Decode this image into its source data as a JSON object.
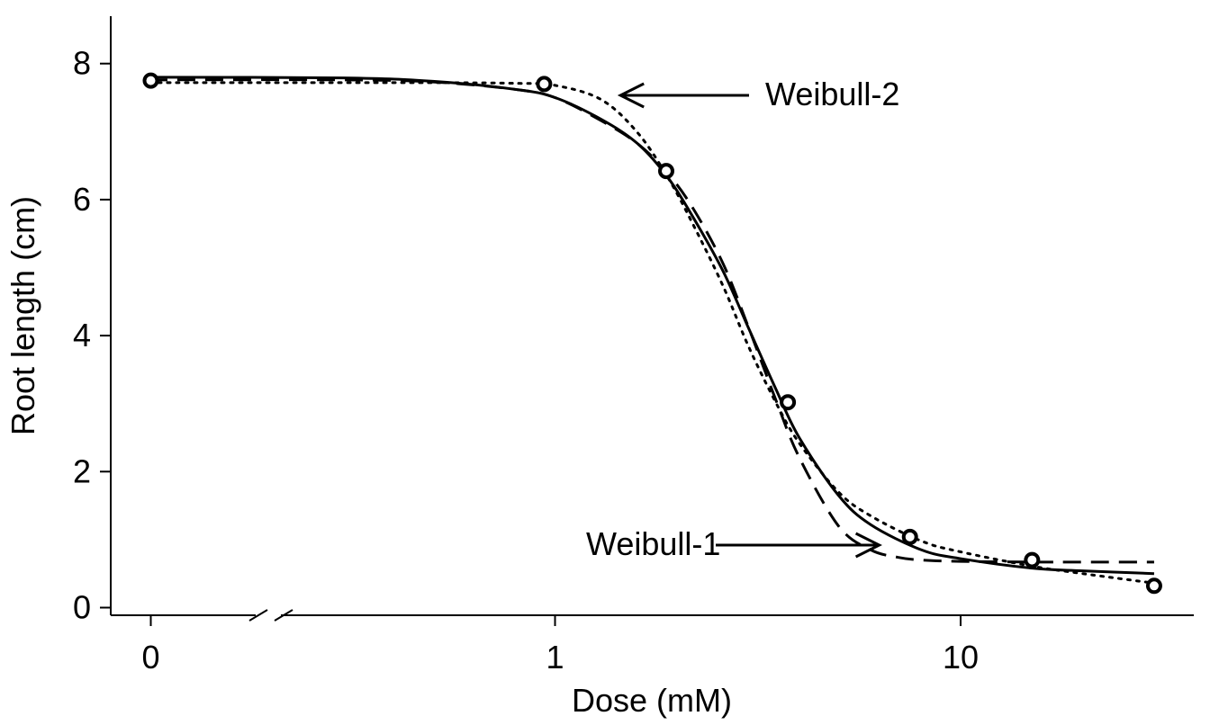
{
  "chart_data": {
    "type": "scatter",
    "title": "",
    "xlabel": "Dose (mM)",
    "ylabel": "Root length (cm)",
    "x_scale": "log",
    "x_axis_break": true,
    "xlim": [
      0.03,
      35
    ],
    "ylim": [
      0,
      8.5
    ],
    "x_ticks": [
      {
        "value": 0,
        "label": "0"
      },
      {
        "value": 1,
        "label": "1"
      },
      {
        "value": 10,
        "label": "10"
      }
    ],
    "y_ticks": [
      {
        "value": 0,
        "label": "0"
      },
      {
        "value": 2,
        "label": "2"
      },
      {
        "value": 4,
        "label": "4"
      },
      {
        "value": 6,
        "label": "6"
      },
      {
        "value": 8,
        "label": "8"
      }
    ],
    "grid": false,
    "observations": [
      {
        "x": 0,
        "y": 7.75
      },
      {
        "x": 0.94,
        "y": 7.7
      },
      {
        "x": 1.88,
        "y": 6.42
      },
      {
        "x": 3.75,
        "y": 3.02
      },
      {
        "x": 7.5,
        "y": 1.04
      },
      {
        "x": 15,
        "y": 0.7
      },
      {
        "x": 30,
        "y": 0.32
      }
    ],
    "series": [
      {
        "style": "solid",
        "x": [
          0.1,
          0.3,
          0.5,
          0.8,
          1.0,
          1.3,
          1.6,
          1.9,
          2.2,
          2.6,
          3.0,
          3.5,
          4.0,
          5.0,
          6.0,
          8.0,
          10,
          15,
          20,
          30
        ],
        "y": [
          7.8,
          7.79,
          7.74,
          7.62,
          7.5,
          7.18,
          6.82,
          6.32,
          5.72,
          4.94,
          4.11,
          3.22,
          2.5,
          1.65,
          1.22,
          0.85,
          0.72,
          0.58,
          0.54,
          0.5
        ]
      },
      {
        "style": "dashed",
        "x": [
          0.1,
          0.3,
          0.5,
          0.8,
          1.0,
          1.3,
          1.6,
          1.9,
          2.2,
          2.6,
          3.0,
          3.5,
          4.0,
          5.0,
          6.0,
          7.0,
          8.0,
          10,
          15,
          20,
          30
        ],
        "y": [
          7.76,
          7.76,
          7.73,
          7.62,
          7.5,
          7.16,
          6.82,
          6.38,
          5.85,
          5.05,
          4.12,
          3.06,
          2.21,
          1.2,
          0.85,
          0.74,
          0.7,
          0.68,
          0.67,
          0.67,
          0.67
        ]
      },
      {
        "style": "dotted",
        "x": [
          0.1,
          0.3,
          0.5,
          0.8,
          1.0,
          1.3,
          1.6,
          1.9,
          2.2,
          2.6,
          3.0,
          3.5,
          4.0,
          5.0,
          6.0,
          8.0,
          10,
          15,
          20,
          30
        ],
        "y": [
          7.72,
          7.72,
          7.72,
          7.71,
          7.68,
          7.47,
          6.98,
          6.32,
          5.61,
          4.72,
          3.84,
          3.02,
          2.42,
          1.7,
          1.35,
          0.98,
          0.82,
          0.61,
          0.5,
          0.36
        ]
      }
    ],
    "annotations": [
      {
        "text": "Weibull-2",
        "arrow_to": {
          "x": 1.45,
          "y": 7.5
        }
      },
      {
        "text": "Weibull-1",
        "arrow_to": {
          "x": 6.3,
          "y": 0.9
        }
      }
    ]
  }
}
